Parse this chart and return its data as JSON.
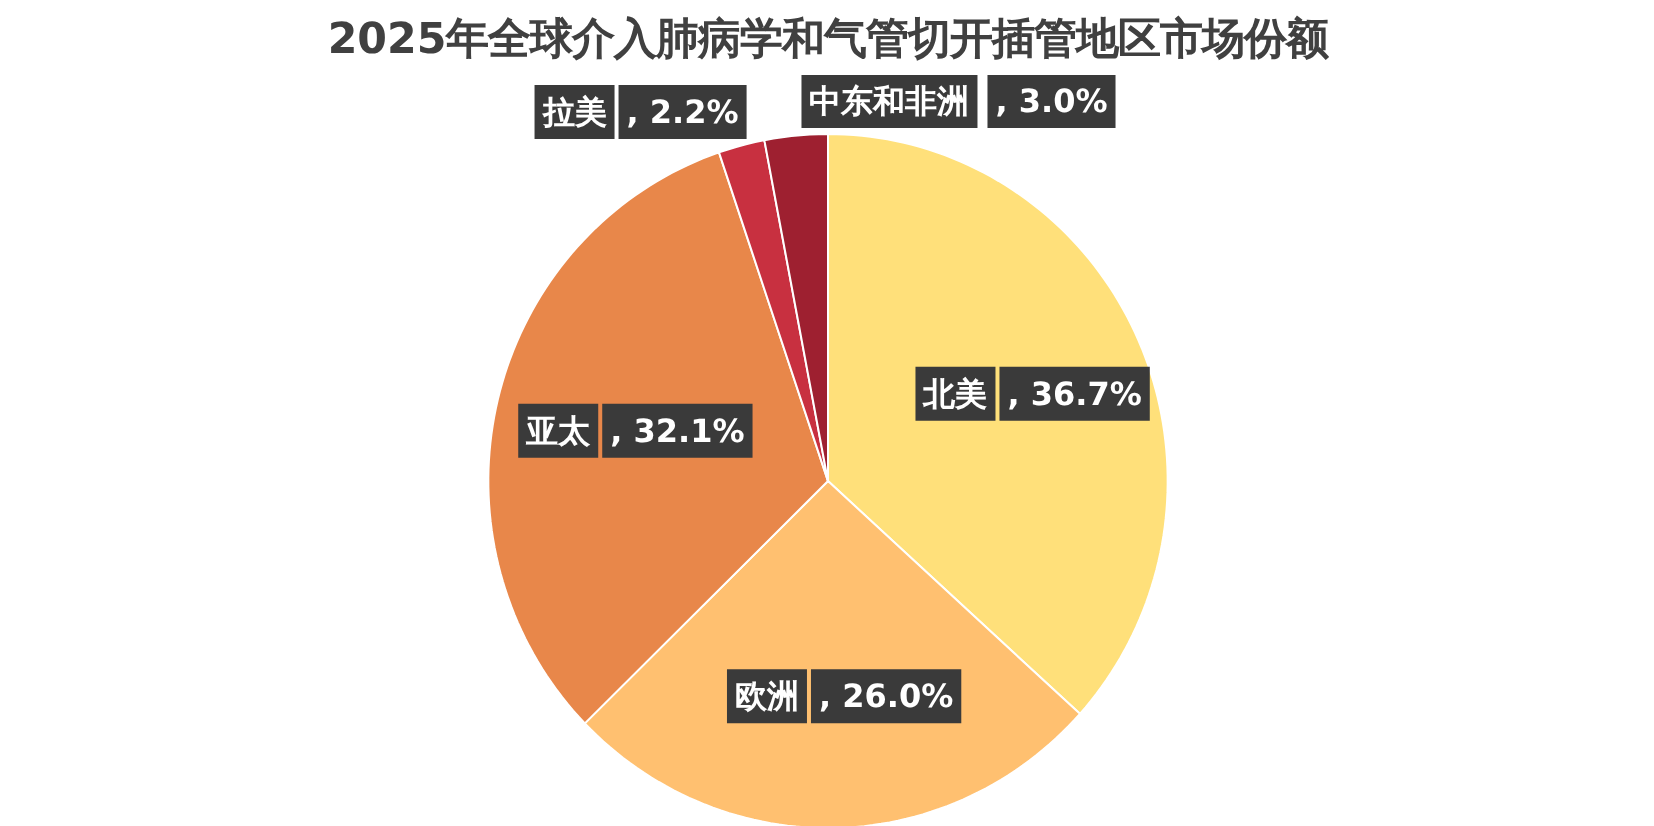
{
  "chart_data": {
    "type": "pie",
    "title": "2025年全球介入肺病学和气管切开插管地区市场份额",
    "categories": [
      "北美",
      "欧洲",
      "亚太",
      "拉美",
      "中东和非洲"
    ],
    "values": [
      36.7,
      26.0,
      32.1,
      2.2,
      3.0
    ],
    "colors": [
      "#ffe07a",
      "#ffc070",
      "#e8874a",
      "#c83040",
      "#9e2030"
    ],
    "value_labels": [
      ", 36.7%",
      ", 26.0%",
      ", 32.1%",
      ", 2.2%",
      ", 3.0%"
    ]
  }
}
